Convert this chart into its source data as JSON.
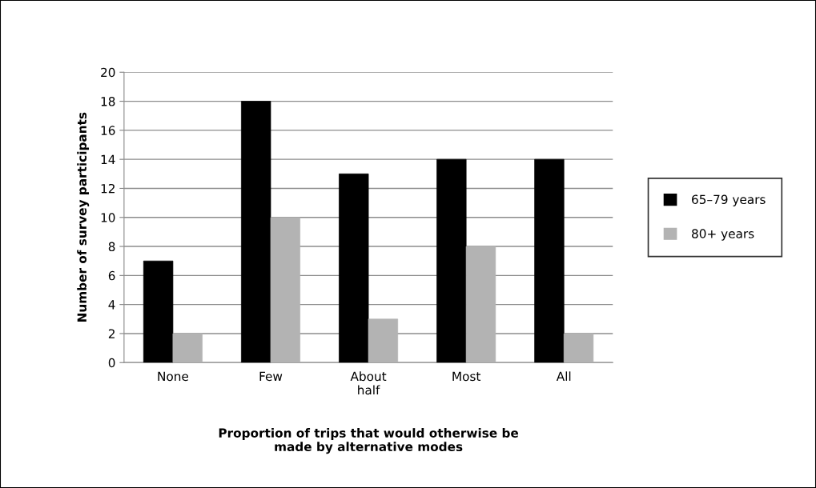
{
  "chart_data": {
    "type": "bar",
    "xlabel": "Proportion of trips that would otherwise be\nmade by alternative modes",
    "ylabel": "Number of survey participants",
    "categories": [
      "None",
      "Few",
      "About\nhalf",
      "Most",
      "All"
    ],
    "series": [
      {
        "name": "65–79 years",
        "color": "#000000",
        "values": [
          7,
          18,
          13,
          14,
          14
        ]
      },
      {
        "name": "80+ years",
        "color": "#b3b3b3",
        "values": [
          2,
          10,
          3,
          8,
          2
        ]
      }
    ],
    "ylim": [
      0,
      20
    ],
    "yticks": [
      0,
      2,
      4,
      6,
      8,
      10,
      12,
      14,
      16,
      18,
      20
    ],
    "grid": "y",
    "legend": "right"
  }
}
